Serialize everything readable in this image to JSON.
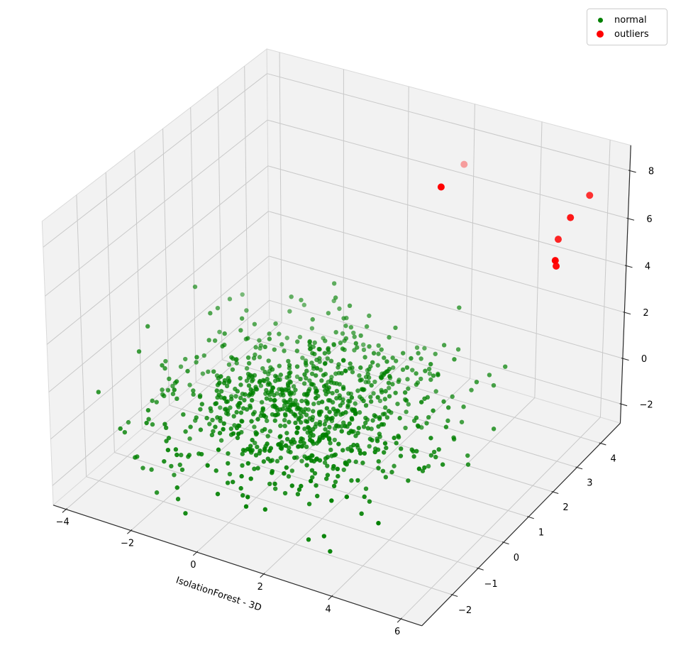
{
  "chart_data": {
    "type": "scatter",
    "projection": "3d",
    "title": "",
    "xlabel": "IsolationForest - 3D",
    "ylabel": "",
    "zlabel": "",
    "xlim": [
      -4.4,
      6.6
    ],
    "ylim": [
      -3.15,
      4.85
    ],
    "zlim": [
      -2.85,
      9.05
    ],
    "xticks": [
      -4,
      -2,
      0,
      2,
      4,
      6
    ],
    "yticks": [
      -2,
      -1,
      0,
      1,
      2,
      3,
      4
    ],
    "zticks": [
      -2,
      0,
      2,
      4,
      6,
      8
    ],
    "xtick_labels": [
      "−4",
      "−2",
      "0",
      "2",
      "4",
      "6"
    ],
    "ytick_labels": [
      "−2",
      "−1",
      "0",
      "1",
      "2",
      "3",
      "4"
    ],
    "ztick_labels": [
      "−2",
      "0",
      "2",
      "4",
      "6",
      "8"
    ],
    "grid": true,
    "view": {
      "elev": 30,
      "azim": -60,
      "dist": 10,
      "box_aspect": [
        1,
        1,
        0.75
      ]
    },
    "legend": {
      "position": "upper right",
      "entries": [
        {
          "label": "normal",
          "color": "#008000",
          "marker_px": 7
        },
        {
          "label": "outliers",
          "color": "#ff0000",
          "marker_px": 10
        }
      ]
    },
    "series": [
      {
        "name": "normal",
        "color": "#008000",
        "marker_radius_px": 3.2,
        "point_count": 950,
        "distribution": {
          "type": "gaussian",
          "center": [
            0.5,
            0.2,
            0.0
          ],
          "sigma": [
            1.8,
            1.35,
            0.85
          ],
          "clip_sigma": 2.6,
          "seed": 7
        }
      },
      {
        "name": "outliers",
        "color": "#ff0000",
        "marker_radius_px": 5,
        "points": [
          {
            "x": 2.7,
            "y": 3.5,
            "z": 8.0,
            "alpha": 0.35
          },
          {
            "x": 2.4,
            "y": 3.0,
            "z": 7.4,
            "alpha": 1.0
          },
          {
            "x": 5.9,
            "y": 4.2,
            "z": 7.3,
            "alpha": 0.8
          },
          {
            "x": 5.5,
            "y": 4.0,
            "z": 6.4,
            "alpha": 0.9
          },
          {
            "x": 5.3,
            "y": 3.8,
            "z": 5.6,
            "alpha": 0.85
          },
          {
            "x": 5.3,
            "y": 3.7,
            "z": 4.8,
            "alpha": 1.0
          },
          {
            "x": 5.4,
            "y": 3.6,
            "z": 4.7,
            "alpha": 0.95
          }
        ]
      }
    ],
    "colors": {
      "pane": "#f2f2f2",
      "pane_edge": "#dadada",
      "grid_line": "#c9c9c9",
      "axis_line": "#2b2b2b",
      "tick_label": "#000000",
      "background": "#ffffff"
    }
  }
}
